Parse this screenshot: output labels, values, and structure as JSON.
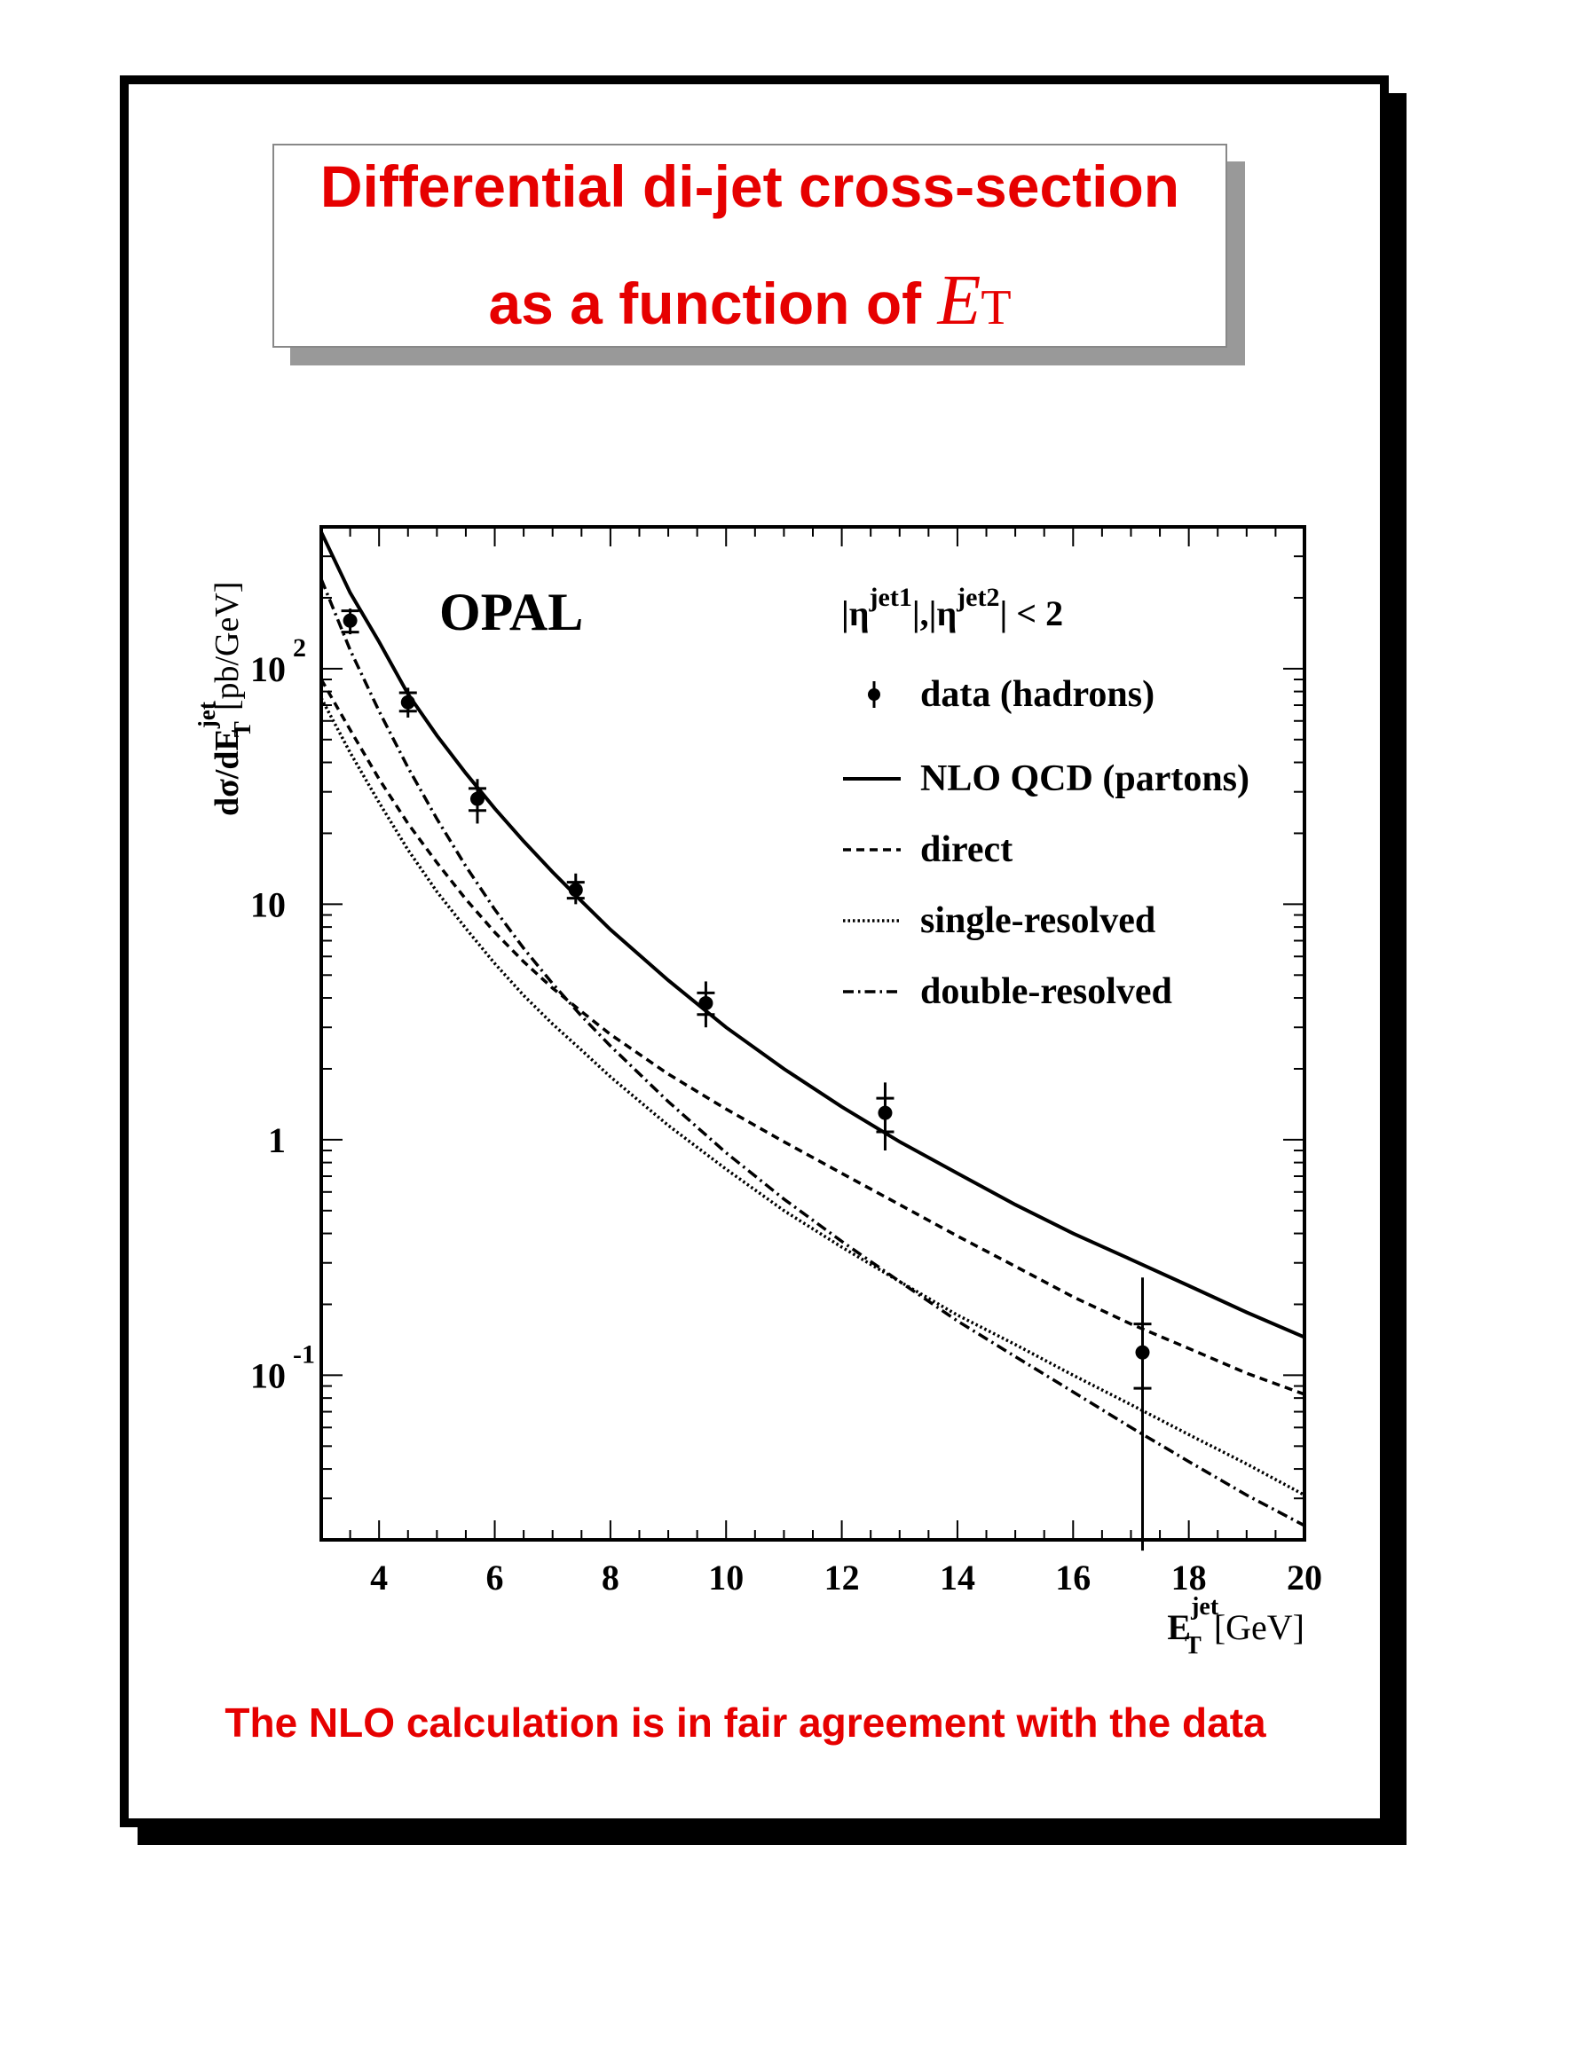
{
  "title": {
    "line1": "Differential di-jet cross-section",
    "line2_prefix": "as a function of",
    "symbol": "E",
    "symbol_sub": "T"
  },
  "footer": "The NLO calculation is in fair agreement with the data",
  "colors": {
    "accent": "#e60000",
    "ink": "#000000",
    "shadow": "#999999"
  },
  "chart_data": {
    "type": "scatter",
    "experiment_label": "OPAL",
    "cut_label": "|η^jet1|,|η^jet2| < 2",
    "cut": {
      "p1": "|η",
      "s1": "jet1",
      "p2": "|,|η",
      "s2": "jet2",
      "p3": "| < 2"
    },
    "xlabel": {
      "main": "E",
      "sub": "T",
      "sup": "jet",
      "unit": "[GeV]"
    },
    "ylabel": {
      "prefix": "dσ/dE",
      "sub": "T",
      "sup": "jet",
      "unit": "[pb/GeV]"
    },
    "xlim": [
      3,
      20
    ],
    "ylim": [
      0.02,
      400
    ],
    "yscale": "log",
    "x_ticks": [
      4,
      6,
      8,
      10,
      12,
      14,
      16,
      18,
      20
    ],
    "y_ticks": [
      {
        "value": 100,
        "base": "10",
        "exp": "2"
      },
      {
        "value": 10,
        "base": "10",
        "exp": ""
      },
      {
        "value": 1,
        "base": "1",
        "exp": ""
      },
      {
        "value": 0.1,
        "base": "10",
        "exp": "-1"
      }
    ],
    "legend": [
      {
        "label": "data (hadrons)",
        "style": "marker"
      },
      {
        "label": "NLO QCD (partons)",
        "style": "solid"
      },
      {
        "label": "direct",
        "style": "dashed"
      },
      {
        "label": "single-resolved",
        "style": "dotted"
      },
      {
        "label": "double-resolved",
        "style": "dashdot"
      }
    ],
    "data_points": [
      {
        "x": 3.5,
        "y": 160,
        "stat_lo": 143,
        "stat_hi": 176,
        "tot_lo": 140,
        "tot_hi": 180
      },
      {
        "x": 4.5,
        "y": 72,
        "stat_lo": 66,
        "stat_hi": 79,
        "tot_lo": 62,
        "tot_hi": 83
      },
      {
        "x": 5.7,
        "y": 28,
        "stat_lo": 25,
        "stat_hi": 31,
        "tot_lo": 22,
        "tot_hi": 34
      },
      {
        "x": 7.4,
        "y": 11.5,
        "stat_lo": 10.6,
        "stat_hi": 12.4,
        "tot_lo": 10,
        "tot_hi": 13.5
      },
      {
        "x": 9.65,
        "y": 3.8,
        "stat_lo": 3.4,
        "stat_hi": 4.2,
        "tot_lo": 3.0,
        "tot_hi": 4.7
      },
      {
        "x": 12.75,
        "y": 1.3,
        "stat_lo": 1.08,
        "stat_hi": 1.5,
        "tot_lo": 0.9,
        "tot_hi": 1.75
      },
      {
        "x": 17.2,
        "y": 0.125,
        "stat_lo": 0.088,
        "stat_hi": 0.165,
        "tot_lo": 0.018,
        "tot_hi": 0.26
      }
    ],
    "series": [
      {
        "name": "NLO QCD (partons)",
        "style": "solid",
        "x": [
          3,
          3.5,
          4,
          4.5,
          5,
          5.5,
          6,
          6.5,
          7,
          7.5,
          8,
          9,
          10,
          11,
          12,
          13,
          14,
          15,
          16,
          17,
          18,
          19,
          20
        ],
        "y": [
          380,
          210,
          130,
          78,
          52,
          36,
          25.5,
          18.5,
          13.7,
          10.3,
          7.8,
          4.75,
          3.0,
          2.0,
          1.38,
          0.98,
          0.72,
          0.53,
          0.4,
          0.31,
          0.24,
          0.185,
          0.145
        ]
      },
      {
        "name": "direct",
        "style": "dashed",
        "x": [
          3,
          3.5,
          4,
          4.5,
          5,
          5.5,
          6,
          6.5,
          7,
          7.5,
          8,
          9,
          10,
          11,
          12,
          13,
          14,
          15,
          16,
          17,
          18,
          19,
          20
        ],
        "y": [
          90,
          55,
          34,
          22,
          15,
          10.5,
          7.6,
          5.7,
          4.4,
          3.5,
          2.8,
          1.9,
          1.35,
          0.98,
          0.72,
          0.53,
          0.39,
          0.29,
          0.215,
          0.165,
          0.13,
          0.102,
          0.083
        ]
      },
      {
        "name": "single-resolved",
        "style": "dotted",
        "x": [
          3,
          3.5,
          4,
          4.5,
          5,
          5.5,
          6,
          6.5,
          7,
          7.5,
          8,
          9,
          10,
          11,
          12,
          13,
          14,
          15,
          16,
          17,
          18,
          19,
          20
        ],
        "y": [
          75,
          44,
          27,
          17,
          11.3,
          7.9,
          5.6,
          4.1,
          3.1,
          2.4,
          1.85,
          1.15,
          0.75,
          0.5,
          0.35,
          0.25,
          0.18,
          0.135,
          0.1,
          0.075,
          0.056,
          0.042,
          0.031
        ]
      },
      {
        "name": "double-resolved",
        "style": "dashdot",
        "x": [
          3,
          3.5,
          4,
          4.5,
          5,
          5.5,
          6,
          6.5,
          7,
          7.5,
          8,
          9,
          10,
          11,
          12,
          13,
          14,
          15,
          16,
          17,
          18,
          19,
          20
        ],
        "y": [
          240,
          120,
          66,
          38,
          23,
          14.5,
          9.5,
          6.5,
          4.6,
          3.35,
          2.5,
          1.45,
          0.88,
          0.56,
          0.37,
          0.25,
          0.17,
          0.12,
          0.085,
          0.06,
          0.043,
          0.031,
          0.023
        ]
      }
    ]
  }
}
